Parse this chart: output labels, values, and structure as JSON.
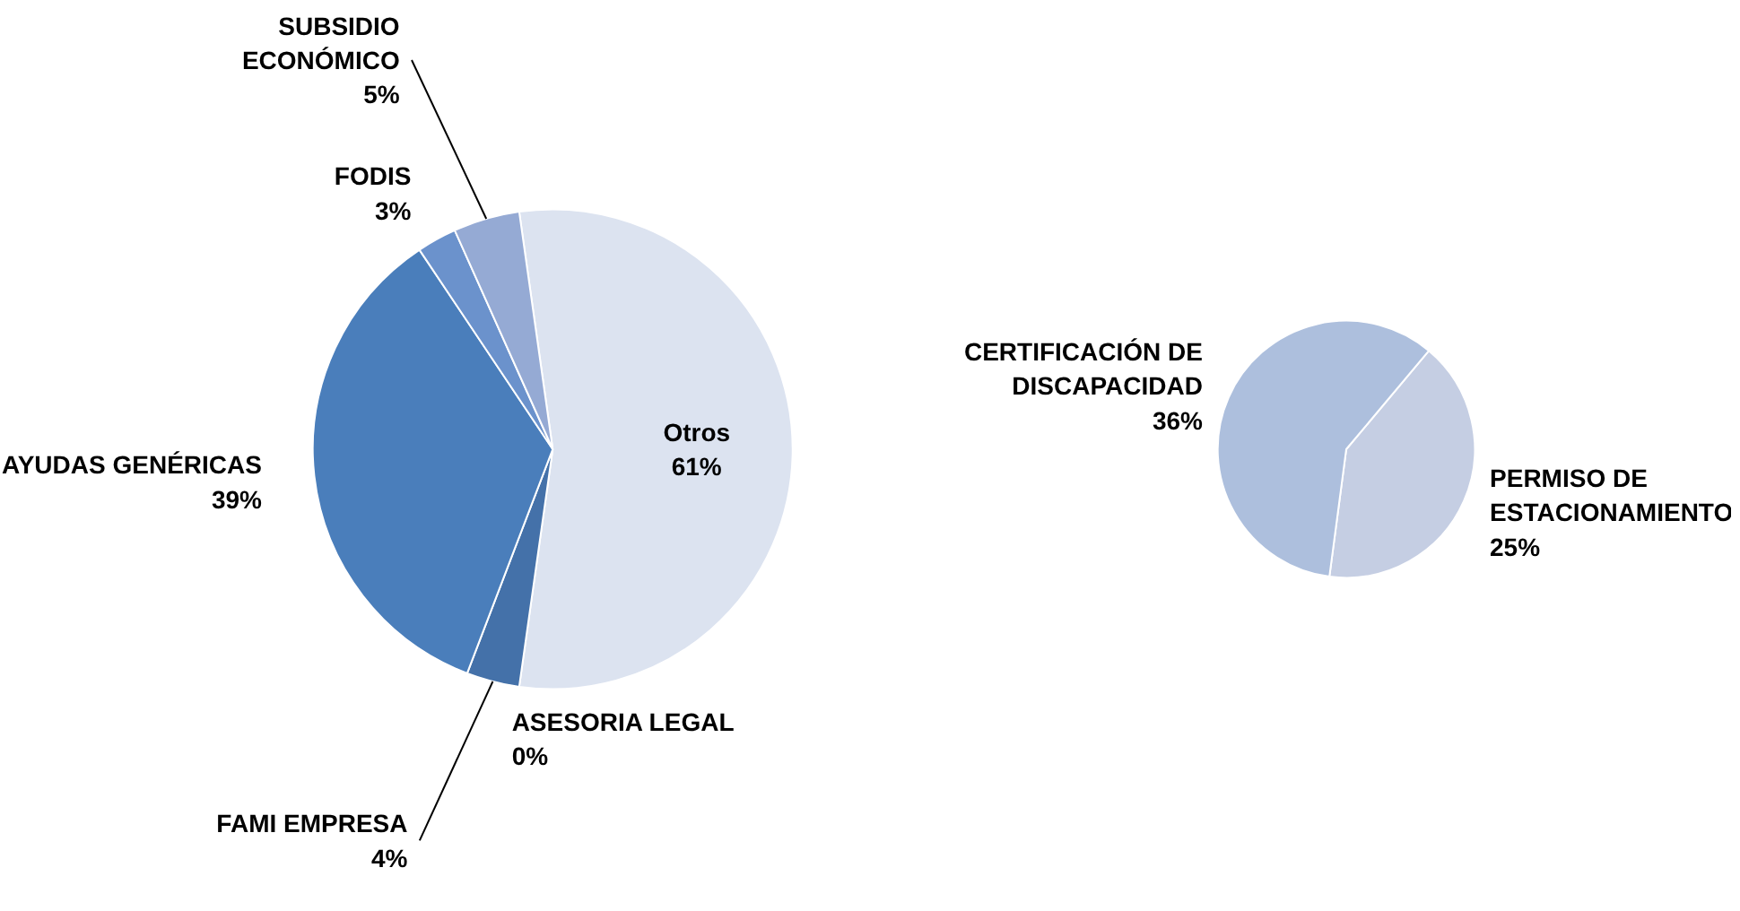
{
  "chart_data": [
    {
      "type": "pie",
      "categories": [
        "Otros",
        "ASESORIA LEGAL",
        "FAMI EMPRESA",
        "AYUDAS GENÉRICAS",
        "FODIS",
        "SUBSIDIO ECONÓMICO"
      ],
      "values": [
        61,
        0,
        4,
        39,
        3,
        5
      ],
      "colors": [
        "#dce3f0",
        "#3e6ea6",
        "#4471a9",
        "#4a7ebb",
        "#6b92cc",
        "#95aad4"
      ],
      "value_labels": [
        "61%",
        "0%",
        "4%",
        "39%",
        "3%",
        "5%"
      ],
      "legend": false
    },
    {
      "type": "pie",
      "categories": [
        "PERMISO DE ESTACIONAMIENTO",
        "CERTIFICACIÓN DE DISCAPACIDAD"
      ],
      "values": [
        25,
        36
      ],
      "colors": [
        "#c5cee3",
        "#adbfdd"
      ],
      "value_labels": [
        "25%",
        "36%"
      ],
      "legend": false
    }
  ]
}
